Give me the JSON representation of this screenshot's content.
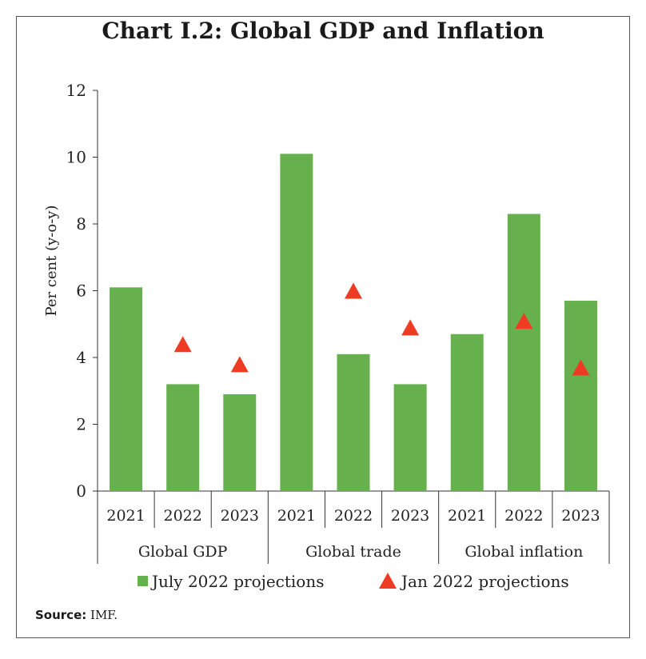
{
  "chart_data": {
    "type": "bar",
    "title": "Chart I.2: Global GDP and Inflation",
    "ylabel": "Per cent (y-o-y)",
    "ylim": [
      0,
      12
    ],
    "yticks": [
      0,
      2,
      4,
      6,
      8,
      10,
      12
    ],
    "groups": [
      {
        "label": "Global GDP",
        "categories": [
          "2021",
          "2022",
          "2023"
        ]
      },
      {
        "label": "Global trade",
        "categories": [
          "2021",
          "2022",
          "2023"
        ]
      },
      {
        "label": "Global inflation",
        "categories": [
          "2021",
          "2022",
          "2023"
        ]
      }
    ],
    "series": [
      {
        "name": "July 2022 projections",
        "kind": "bar",
        "color": "#66b04e",
        "values": [
          6.1,
          3.2,
          2.9,
          10.1,
          4.1,
          3.2,
          4.7,
          8.3,
          5.7
        ]
      },
      {
        "name": "Jan 2022 projections",
        "kind": "triangle",
        "color": "#ee3b24",
        "values": [
          null,
          4.4,
          3.8,
          null,
          6.0,
          4.9,
          null,
          5.1,
          3.7
        ]
      }
    ],
    "legend_position": "bottom"
  },
  "source_label": "Source:",
  "source_text": " IMF."
}
